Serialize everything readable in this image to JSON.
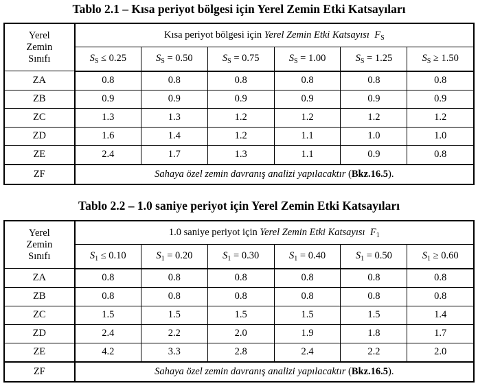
{
  "table1": {
    "title": "Tablo 2.1 – Kısa periyot bölgesi için Yerel Zemin Etki Katsayıları",
    "class_header": [
      "Yerel",
      "Zemin",
      "Sınıfı"
    ],
    "group_header": {
      "prefix": "Kısa periyot bölgesi için ",
      "italic": "Yerel Zemin Etki Katsayısı",
      "symbol": "F",
      "symbol_sub": "S"
    },
    "columns": [
      {
        "sym": "S",
        "sub": "S",
        "rel": " ≤ 0.25"
      },
      {
        "sym": "S",
        "sub": "S",
        "rel": " = 0.50"
      },
      {
        "sym": "S",
        "sub": "S",
        "rel": " = 0.75"
      },
      {
        "sym": "S",
        "sub": "S",
        "rel": " = 1.00"
      },
      {
        "sym": "S",
        "sub": "S",
        "rel": " = 1.25"
      },
      {
        "sym": "S",
        "sub": "S",
        "rel": " ≥ 1.50"
      }
    ],
    "rows": [
      {
        "class": "ZA",
        "values": [
          "0.8",
          "0.8",
          "0.8",
          "0.8",
          "0.8",
          "0.8"
        ]
      },
      {
        "class": "ZB",
        "values": [
          "0.9",
          "0.9",
          "0.9",
          "0.9",
          "0.9",
          "0.9"
        ]
      },
      {
        "class": "ZC",
        "values": [
          "1.3",
          "1.3",
          "1.2",
          "1.2",
          "1.2",
          "1.2"
        ]
      },
      {
        "class": "ZD",
        "values": [
          "1.6",
          "1.4",
          "1.2",
          "1.1",
          "1.0",
          "1.0"
        ]
      },
      {
        "class": "ZE",
        "values": [
          "2.4",
          "1.7",
          "1.3",
          "1.1",
          "0.9",
          "0.8"
        ]
      }
    ],
    "zf": {
      "class": "ZF",
      "note": "Sahaya özel zemin davranış analizi yapılacaktır",
      "ref_open": " (",
      "ref": "Bkz.16.5",
      "ref_close": ")."
    }
  },
  "table2": {
    "title": "Tablo 2.2 – 1.0 saniye periyot için Yerel Zemin Etki Katsayıları",
    "class_header": [
      "Yerel",
      "Zemin",
      "Sınıfı"
    ],
    "group_header": {
      "prefix": "1.0 saniye periyot için ",
      "italic": "Yerel Zemin Etki Katsayısı",
      "symbol": "F",
      "symbol_sub": "1"
    },
    "columns": [
      {
        "sym": "S",
        "sub": "1",
        "rel": " ≤ 0.10"
      },
      {
        "sym": "S",
        "sub": "1",
        "rel": " = 0.20"
      },
      {
        "sym": "S",
        "sub": "1",
        "rel": " = 0.30"
      },
      {
        "sym": "S",
        "sub": "1",
        "rel": " = 0.40"
      },
      {
        "sym": "S",
        "sub": "1",
        "rel": " = 0.50"
      },
      {
        "sym": "S",
        "sub": "1",
        "rel": " ≥ 0.60"
      }
    ],
    "rows": [
      {
        "class": "ZA",
        "values": [
          "0.8",
          "0.8",
          "0.8",
          "0.8",
          "0.8",
          "0.8"
        ]
      },
      {
        "class": "ZB",
        "values": [
          "0.8",
          "0.8",
          "0.8",
          "0.8",
          "0.8",
          "0.8"
        ]
      },
      {
        "class": "ZC",
        "values": [
          "1.5",
          "1.5",
          "1.5",
          "1.5",
          "1.5",
          "1.4"
        ]
      },
      {
        "class": "ZD",
        "values": [
          "2.4",
          "2.2",
          "2.0",
          "1.9",
          "1.8",
          "1.7"
        ]
      },
      {
        "class": "ZE",
        "values": [
          "4.2",
          "3.3",
          "2.8",
          "2.4",
          "2.2",
          "2.0"
        ]
      }
    ],
    "zf": {
      "class": "ZF",
      "note": "Sahaya özel zemin davranış analizi yapılacaktır",
      "ref_open": " (",
      "ref": "Bkz.16.5",
      "ref_close": ")."
    }
  }
}
